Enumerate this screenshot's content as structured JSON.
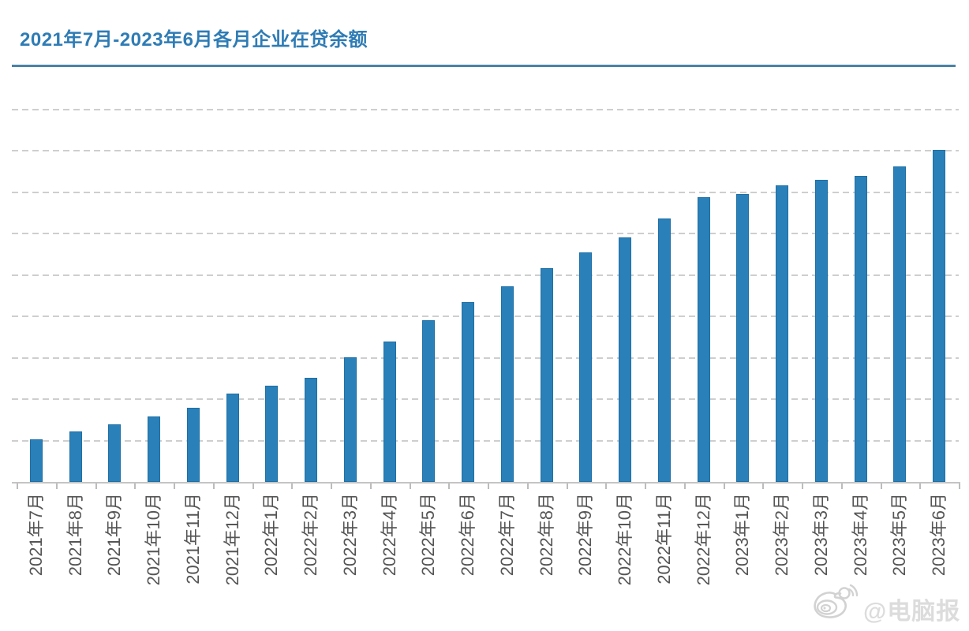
{
  "title": "2021年7月-2023年6月各月企业在贷余额",
  "watermark": {
    "text": "@电脑报",
    "icon": "weibo-icon"
  },
  "colors": {
    "bar": "#2a80b8",
    "title": "#2e7cb5",
    "title_rule": "#4a82a6",
    "gridline": "#cecece",
    "axis": "#c4c4c4",
    "x_labels": "#555555",
    "watermark": "#dcdcdc"
  },
  "chart_data": {
    "type": "bar",
    "title": "2021年7月-2023年6月各月企业在贷余额",
    "categories": [
      "2021年7月",
      "2021年8月",
      "2021年9月",
      "2021年10月",
      "2021年11月",
      "2021年12月",
      "2022年1月",
      "2022年2月",
      "2022年3月",
      "2022年4月",
      "2022年5月",
      "2022年6月",
      "2022年7月",
      "2022年8月",
      "2022年9月",
      "2022年10月",
      "2022年11月",
      "2022年12月",
      "2023年1月",
      "2023年2月",
      "2023年3月",
      "2023年4月",
      "2023年5月",
      "2023年6月"
    ],
    "values": [
      1.03,
      1.22,
      1.39,
      1.58,
      1.79,
      2.13,
      2.32,
      2.51,
      3.01,
      3.39,
      3.9,
      4.34,
      4.72,
      5.16,
      5.54,
      5.9,
      6.36,
      6.88,
      6.95,
      7.16,
      7.3,
      7.39,
      7.62,
      8.01
    ],
    "xlabel": "",
    "ylabel": "",
    "ylim": [
      0,
      9
    ],
    "y_unit": "gridline-intervals (y-axis has no tick labels; 1 unit = one gridline spacing)",
    "grid": "horizontal dashed gridlines, 9 above baseline",
    "legend": "none",
    "x_tick_label_rotation": 90
  }
}
